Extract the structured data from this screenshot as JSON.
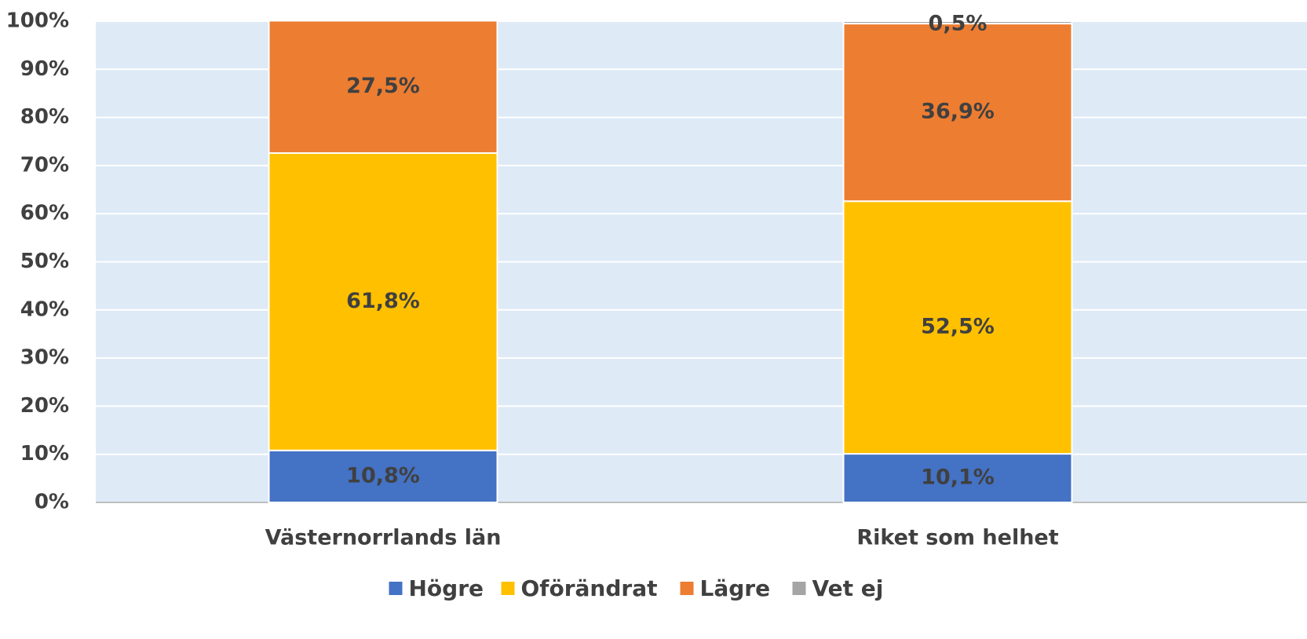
{
  "chart_data": {
    "type": "stacked-bar",
    "categories": [
      "Västernorrlands län",
      "Riket som helhet"
    ],
    "series": [
      {
        "name": "Högre",
        "color": "#4472c4",
        "values": [
          10.8,
          10.1
        ],
        "value_labels": [
          "10,8%",
          "10,1%"
        ]
      },
      {
        "name": "Oförändrat",
        "color": "#ffc000",
        "values": [
          61.8,
          52.5
        ],
        "value_labels": [
          "61,8%",
          "52,5%"
        ]
      },
      {
        "name": "Lägre",
        "color": "#ed7d31",
        "values": [
          27.5,
          36.9
        ],
        "value_labels": [
          "27,5%",
          "36,9%"
        ]
      },
      {
        "name": "Vet ej",
        "color": "#a5a5a5",
        "values": [
          null,
          0.5
        ],
        "value_labels": [
          null,
          "0,5%"
        ]
      }
    ],
    "ylim": [
      0,
      100
    ],
    "yticks": [
      {
        "value": 0,
        "label": "0%"
      },
      {
        "value": 10,
        "label": "10%"
      },
      {
        "value": 20,
        "label": "20%"
      },
      {
        "value": 30,
        "label": "30%"
      },
      {
        "value": 40,
        "label": "40%"
      },
      {
        "value": 50,
        "label": "50%"
      },
      {
        "value": 60,
        "label": "60%"
      },
      {
        "value": 70,
        "label": "70%"
      },
      {
        "value": 80,
        "label": "80%"
      },
      {
        "value": 90,
        "label": "90%"
      },
      {
        "value": 100,
        "label": "100%"
      }
    ],
    "grid": true
  }
}
